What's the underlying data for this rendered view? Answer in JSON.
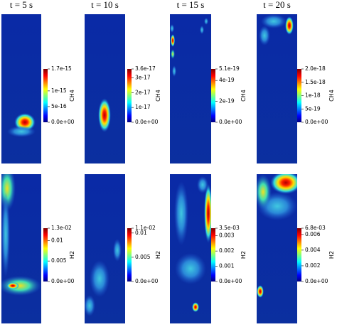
{
  "titles": [
    "t = 5 s",
    "t = 10 s",
    "t = 15 s",
    "t = 20 s"
  ],
  "rows": [
    {
      "label": "CH4",
      "colorbars": [
        [
          "1.7e-15",
          "1e-15",
          "5e-16",
          "0.0e+00"
        ],
        [
          "3.6e-17",
          "3e-17",
          "2e-17",
          "1e-17",
          "0.0e+00"
        ],
        [
          "5.1e-19",
          "4e-19",
          "2e-19",
          "0.0e+00"
        ],
        [
          "2.0e-18",
          "1.5e-18",
          "1e-18",
          "5e-19",
          "0.0e+00"
        ]
      ]
    },
    {
      "label": "H2",
      "colorbars": [
        [
          "1.3e-02",
          "0.01",
          "0.005",
          "0.0e+00"
        ],
        [
          "1.1e-02",
          "0.01",
          "0.005",
          "0.0e+00"
        ],
        [
          "3.5e-03",
          "0.003",
          "0.002",
          "0.001",
          "0.0e+00"
        ],
        [
          "6.8e-03",
          "0.006",
          "0.004",
          "0.002",
          "0.0e+00"
        ]
      ]
    }
  ]
}
